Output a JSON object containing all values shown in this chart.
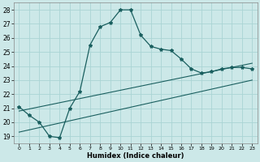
{
  "xlabel": "Humidex (Indice chaleur)",
  "bg_color": "#cce8e8",
  "line_color": "#1a5f5f",
  "grid_color": "#aad4d4",
  "xlim": [
    -0.5,
    23.5
  ],
  "ylim": [
    18.5,
    28.5
  ],
  "yticks": [
    19,
    20,
    21,
    22,
    23,
    24,
    25,
    26,
    27,
    28
  ],
  "xticks": [
    0,
    1,
    2,
    3,
    4,
    5,
    6,
    7,
    8,
    9,
    10,
    11,
    12,
    13,
    14,
    15,
    16,
    17,
    18,
    19,
    20,
    21,
    22,
    23
  ],
  "line1_x": [
    0,
    1,
    2,
    3,
    4,
    5,
    6,
    7,
    8,
    9,
    10,
    11,
    12,
    13,
    14,
    15,
    16,
    17,
    18,
    19,
    20,
    21,
    22,
    23
  ],
  "line1_y": [
    21.1,
    20.5,
    20.0,
    19.0,
    18.9,
    21.0,
    22.2,
    25.5,
    26.8,
    27.1,
    28.0,
    28.0,
    26.2,
    25.4,
    25.2,
    25.1,
    24.5,
    23.8,
    23.5,
    23.6,
    23.8,
    23.9,
    23.9,
    23.8
  ],
  "line2_x": [
    0,
    23
  ],
  "line2_y": [
    19.3,
    23.0
  ],
  "line3_x": [
    0,
    23
  ],
  "line3_y": [
    20.8,
    24.2
  ]
}
